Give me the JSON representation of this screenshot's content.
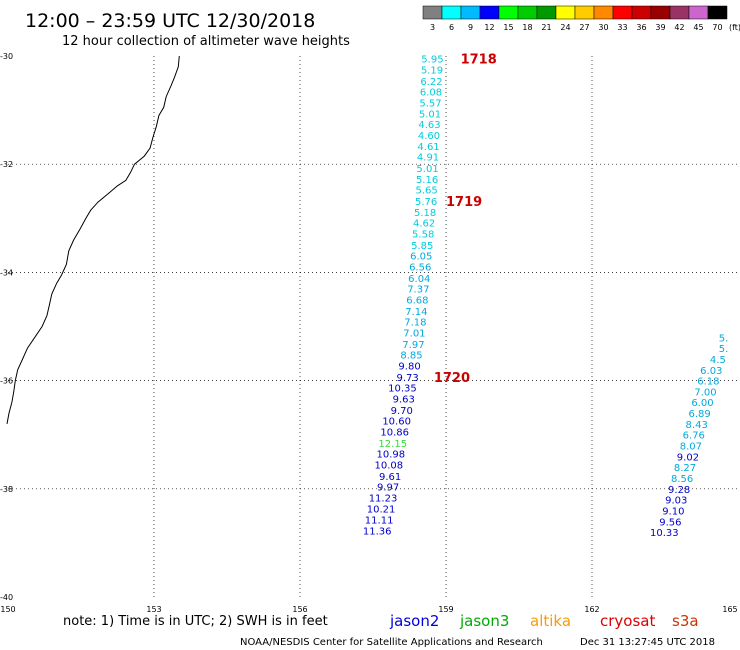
{
  "header": {
    "title": "12:00 – 23:59 UTC 12/30/2018",
    "subtitle": "12 hour collection of altimeter wave heights"
  },
  "legend": {
    "unit": "(ft)",
    "bins": [
      {
        "label": "3",
        "color": "#808080"
      },
      {
        "label": "6",
        "color": "#00ffff"
      },
      {
        "label": "9",
        "color": "#00bbff"
      },
      {
        "label": "12",
        "color": "#0000ff"
      },
      {
        "label": "15",
        "color": "#00ff00"
      },
      {
        "label": "18",
        "color": "#00cc00"
      },
      {
        "label": "21",
        "color": "#009900"
      },
      {
        "label": "24",
        "color": "#ffff00"
      },
      {
        "label": "27",
        "color": "#ffcc00"
      },
      {
        "label": "30",
        "color": "#ff8800"
      },
      {
        "label": "33",
        "color": "#ff0000"
      },
      {
        "label": "36",
        "color": "#cc0000"
      },
      {
        "label": "39",
        "color": "#990000"
      },
      {
        "label": "42",
        "color": "#993366"
      },
      {
        "label": "45",
        "color": "#cc66cc"
      },
      {
        "label": "70",
        "color": "#000000"
      }
    ]
  },
  "axes": {
    "lon_labels": [
      {
        "lon": 150,
        "label": "150"
      },
      {
        "lon": 153,
        "label": "153"
      },
      {
        "lon": 156,
        "label": "156"
      },
      {
        "lon": 159,
        "label": "159"
      },
      {
        "lon": 162,
        "label": "162"
      },
      {
        "lon": 165,
        "label": "165"
      }
    ],
    "lat_labels": [
      {
        "lat": -30,
        "label": "-30"
      },
      {
        "lat": -32,
        "label": "-32"
      },
      {
        "lat": -34,
        "label": "-34"
      },
      {
        "lat": -36,
        "label": "-36"
      },
      {
        "lat": -38,
        "label": "-38"
      },
      {
        "lat": -40,
        "label": "-40"
      }
    ],
    "lon_range": [
      150,
      165
    ],
    "lat_range": [
      -40,
      -30
    ],
    "grid": "dotted"
  },
  "tracks": [
    {
      "id": "track-a",
      "points": [
        {
          "v": "5.95",
          "color": "#00ccdd",
          "lat": -30.05,
          "lon": 158.95
        },
        {
          "v": "5.19",
          "color": "#00ccdd",
          "lat": -30.25,
          "lon": 158.94
        },
        {
          "v": "6.22",
          "color": "#00ccdd",
          "lat": -30.46,
          "lon": 158.93
        },
        {
          "v": "6.08",
          "color": "#00ccdd",
          "lat": -30.66,
          "lon": 158.92
        },
        {
          "v": "5.57",
          "color": "#00ccdd",
          "lat": -30.86,
          "lon": 158.91
        },
        {
          "v": "5.01",
          "color": "#00ccdd",
          "lat": -31.06,
          "lon": 158.9
        },
        {
          "v": "4.63",
          "color": "#00ccdd",
          "lat": -31.26,
          "lon": 158.89
        },
        {
          "v": "4.60",
          "color": "#00ccdd",
          "lat": -31.46,
          "lon": 158.88
        },
        {
          "v": "4.61",
          "color": "#00ccdd",
          "lat": -31.66,
          "lon": 158.87
        },
        {
          "v": "4.91",
          "color": "#00ccdd",
          "lat": -31.86,
          "lon": 158.86
        },
        {
          "v": "5.01",
          "color": "#00ccdd",
          "lat": -32.07,
          "lon": 158.85
        },
        {
          "v": "5.16",
          "color": "#00ccdd",
          "lat": -32.27,
          "lon": 158.84
        },
        {
          "v": "5.65",
          "color": "#00ccdd",
          "lat": -32.47,
          "lon": 158.83
        },
        {
          "v": "5.76",
          "color": "#00ccdd",
          "lat": -32.68,
          "lon": 158.82
        },
        {
          "v": "5.18",
          "color": "#00ccdd",
          "lat": -32.88,
          "lon": 158.8
        },
        {
          "v": "4.62",
          "color": "#00ccdd",
          "lat": -33.08,
          "lon": 158.78
        },
        {
          "v": "5.58",
          "color": "#00ccdd",
          "lat": -33.28,
          "lon": 158.76
        },
        {
          "v": "5.85",
          "color": "#00ccdd",
          "lat": -33.49,
          "lon": 158.74
        },
        {
          "v": "6.05",
          "color": "#00aadd",
          "lat": -33.69,
          "lon": 158.72
        },
        {
          "v": "6.56",
          "color": "#00aadd",
          "lat": -33.89,
          "lon": 158.7
        },
        {
          "v": "6.04",
          "color": "#00aadd",
          "lat": -34.1,
          "lon": 158.68
        },
        {
          "v": "7.37",
          "color": "#00aadd",
          "lat": -34.3,
          "lon": 158.66
        },
        {
          "v": "6.68",
          "color": "#00aadd",
          "lat": -34.5,
          "lon": 158.64
        },
        {
          "v": "7.14",
          "color": "#00aadd",
          "lat": -34.71,
          "lon": 158.62
        },
        {
          "v": "7.18",
          "color": "#00aadd",
          "lat": -34.91,
          "lon": 158.6
        },
        {
          "v": "7.01",
          "color": "#00aadd",
          "lat": -35.11,
          "lon": 158.58
        },
        {
          "v": "7.97",
          "color": "#00aadd",
          "lat": -35.32,
          "lon": 158.56
        },
        {
          "v": "8.85",
          "color": "#00aadd",
          "lat": -35.52,
          "lon": 158.52
        },
        {
          "v": "9.80",
          "color": "#0000cc",
          "lat": -35.72,
          "lon": 158.48
        },
        {
          "v": "9.73",
          "color": "#0000cc",
          "lat": -35.93,
          "lon": 158.44
        },
        {
          "v": "10.35",
          "color": "#0000cc",
          "lat": -36.13,
          "lon": 158.4
        },
        {
          "v": "9.63",
          "color": "#0000cc",
          "lat": -36.33,
          "lon": 158.36
        },
        {
          "v": "9.70",
          "color": "#0000cc",
          "lat": -36.54,
          "lon": 158.32
        },
        {
          "v": "10.60",
          "color": "#0000cc",
          "lat": -36.74,
          "lon": 158.28
        },
        {
          "v": "10.86",
          "color": "#0000cc",
          "lat": -36.94,
          "lon": 158.24
        },
        {
          "v": "12.15",
          "color": "#33dd33",
          "lat": -37.15,
          "lon": 158.2
        },
        {
          "v": "10.98",
          "color": "#0000cc",
          "lat": -37.35,
          "lon": 158.16
        },
        {
          "v": "10.08",
          "color": "#0000cc",
          "lat": -37.55,
          "lon": 158.12
        },
        {
          "v": "9.61",
          "color": "#0000cc",
          "lat": -37.76,
          "lon": 158.08
        },
        {
          "v": "9.97",
          "color": "#0000cc",
          "lat": -37.96,
          "lon": 158.04
        },
        {
          "v": "11.23",
          "color": "#0000cc",
          "lat": -38.16,
          "lon": 158.0
        },
        {
          "v": "10.21",
          "color": "#0000cc",
          "lat": -38.36,
          "lon": 157.96
        },
        {
          "v": "11.11",
          "color": "#0000cc",
          "lat": -38.57,
          "lon": 157.92
        },
        {
          "v": "11.36",
          "color": "#0000cc",
          "lat": -38.77,
          "lon": 157.88
        }
      ],
      "orbits": [
        {
          "label": "1718",
          "lat": -30.05,
          "lon": 159.3
        },
        {
          "label": "1719",
          "lat": -32.68,
          "lon": 159.0
        },
        {
          "label": "1720",
          "lat": -35.93,
          "lon": 158.75
        }
      ]
    },
    {
      "id": "track-b",
      "points": [
        {
          "v": "5.",
          "color": "#00aadd",
          "lat": -35.2,
          "lon": 164.8
        },
        {
          "v": "5.",
          "color": "#00aadd",
          "lat": -35.4,
          "lon": 164.8
        },
        {
          "v": "4.5",
          "color": "#00aadd",
          "lat": -35.6,
          "lon": 164.75
        },
        {
          "v": "6.03",
          "color": "#00aadd",
          "lat": -35.8,
          "lon": 164.68
        },
        {
          "v": "6.18",
          "color": "#00aadd",
          "lat": -36.0,
          "lon": 164.62
        },
        {
          "v": "7.00",
          "color": "#00aadd",
          "lat": -36.2,
          "lon": 164.56
        },
        {
          "v": "6.00",
          "color": "#00aadd",
          "lat": -36.4,
          "lon": 164.5
        },
        {
          "v": "6.89",
          "color": "#00aadd",
          "lat": -36.6,
          "lon": 164.44
        },
        {
          "v": "8.43",
          "color": "#00aadd",
          "lat": -36.8,
          "lon": 164.38
        },
        {
          "v": "6.76",
          "color": "#00aadd",
          "lat": -37.0,
          "lon": 164.32
        },
        {
          "v": "8.07",
          "color": "#00aadd",
          "lat": -37.2,
          "lon": 164.26
        },
        {
          "v": "9.02",
          "color": "#0000cc",
          "lat": -37.4,
          "lon": 164.2
        },
        {
          "v": "8.27",
          "color": "#00aadd",
          "lat": -37.6,
          "lon": 164.14
        },
        {
          "v": "8.56",
          "color": "#00aadd",
          "lat": -37.8,
          "lon": 164.08
        },
        {
          "v": "9.28",
          "color": "#0000cc",
          "lat": -38.0,
          "lon": 164.02
        },
        {
          "v": "9.03",
          "color": "#0000cc",
          "lat": -38.2,
          "lon": 163.96
        },
        {
          "v": "9.10",
          "color": "#0000cc",
          "lat": -38.4,
          "lon": 163.9
        },
        {
          "v": "9.56",
          "color": "#0000cc",
          "lat": -38.6,
          "lon": 163.84
        },
        {
          "v": "10.33",
          "color": "#0000cc",
          "lat": -38.8,
          "lon": 163.78
        }
      ],
      "orbits": []
    }
  ],
  "footer": {
    "note": "note: 1) Time is in UTC; 2) SWH is in feet",
    "satellites": [
      {
        "name": "jason2",
        "color": "#0000dd"
      },
      {
        "name": "jason3",
        "color": "#00aa00"
      },
      {
        "name": "altika",
        "color": "#ff9900"
      },
      {
        "name": "cryosat",
        "color": "#dd0000"
      },
      {
        "name": "s3a",
        "color": "#cc3300"
      }
    ],
    "credit": "NOAA/NESDIS Center for Satellite Applications and Research",
    "timestamp": "Dec 31 13:27:45 UTC 2018"
  },
  "coast_lonlat": [
    [
      153.52,
      -30.0
    ],
    [
      153.5,
      -30.2
    ],
    [
      153.42,
      -30.4
    ],
    [
      153.35,
      -30.55
    ],
    [
      153.25,
      -30.75
    ],
    [
      153.2,
      -30.95
    ],
    [
      153.1,
      -31.1
    ],
    [
      153.05,
      -31.3
    ],
    [
      152.98,
      -31.5
    ],
    [
      152.92,
      -31.7
    ],
    [
      152.8,
      -31.85
    ],
    [
      152.6,
      -32.0
    ],
    [
      152.52,
      -32.15
    ],
    [
      152.42,
      -32.3
    ],
    [
      152.25,
      -32.4
    ],
    [
      152.05,
      -32.55
    ],
    [
      151.85,
      -32.7
    ],
    [
      151.7,
      -32.85
    ],
    [
      151.6,
      -33.0
    ],
    [
      151.48,
      -33.2
    ],
    [
      151.35,
      -33.4
    ],
    [
      151.25,
      -33.6
    ],
    [
      151.2,
      -33.85
    ],
    [
      151.1,
      -34.05
    ],
    [
      151.0,
      -34.2
    ],
    [
      150.9,
      -34.4
    ],
    [
      150.85,
      -34.6
    ],
    [
      150.8,
      -34.8
    ],
    [
      150.7,
      -35.0
    ],
    [
      150.55,
      -35.2
    ],
    [
      150.4,
      -35.4
    ],
    [
      150.3,
      -35.6
    ],
    [
      150.2,
      -35.8
    ],
    [
      150.15,
      -36.0
    ],
    [
      150.12,
      -36.2
    ],
    [
      150.08,
      -36.4
    ],
    [
      150.02,
      -36.6
    ],
    [
      149.98,
      -36.8
    ]
  ]
}
